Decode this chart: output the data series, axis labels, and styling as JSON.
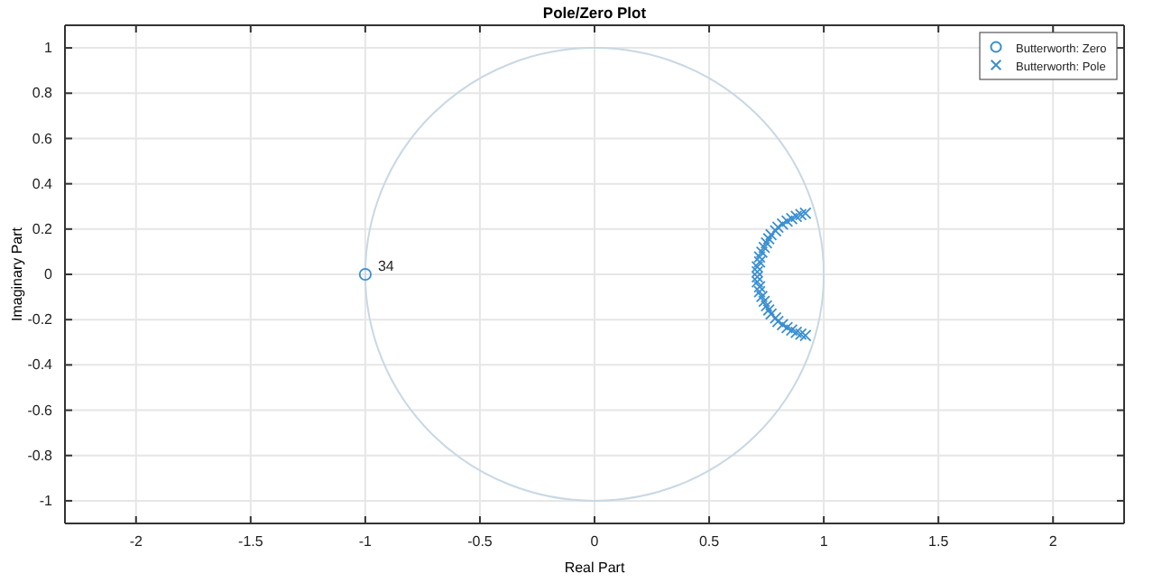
{
  "chart_data": {
    "type": "scatter",
    "title": "Pole/Zero Plot",
    "xlabel": "Real Part",
    "ylabel": "Imaginary Part",
    "xlim": [
      -2.31,
      2.31
    ],
    "ylim": [
      -1.1,
      1.1
    ],
    "xticks": [
      -2,
      -1.5,
      -1,
      -0.5,
      0,
      0.5,
      1,
      1.5,
      2
    ],
    "yticks": [
      -1,
      -0.8,
      -0.6,
      -0.4,
      -0.2,
      0,
      0.2,
      0.4,
      0.6,
      0.8,
      1
    ],
    "grid": true,
    "legend": "top right",
    "annotations": [
      {
        "text": "34",
        "x": -1,
        "y": 0
      }
    ],
    "series": [
      {
        "name": "Butterworth: Zero",
        "color": "#3a8fd0",
        "marker": "circle",
        "x": [
          -1
        ],
        "values": [
          0
        ]
      },
      {
        "name": "Butterworth: Pole",
        "color": "#3a8fd0",
        "marker": "cross",
        "x": [
          0.92,
          0.9,
          0.88,
          0.86,
          0.84,
          0.82,
          0.8,
          0.79,
          0.77,
          0.76,
          0.75,
          0.74,
          0.73,
          0.72,
          0.72,
          0.71,
          0.71,
          0.71,
          0.71,
          0.72,
          0.72,
          0.73,
          0.74,
          0.75,
          0.76,
          0.77,
          0.79,
          0.8,
          0.82,
          0.84,
          0.86,
          0.88,
          0.9,
          0.92
        ],
        "values": [
          0.27,
          0.264,
          0.256,
          0.246,
          0.235,
          0.222,
          0.208,
          0.192,
          0.175,
          0.157,
          0.139,
          0.119,
          0.098,
          0.077,
          0.055,
          0.033,
          0.011,
          -0.011,
          -0.033,
          -0.055,
          -0.077,
          -0.098,
          -0.119,
          -0.139,
          -0.157,
          -0.175,
          -0.192,
          -0.208,
          -0.222,
          -0.235,
          -0.246,
          -0.256,
          -0.264,
          -0.27
        ]
      }
    ]
  }
}
